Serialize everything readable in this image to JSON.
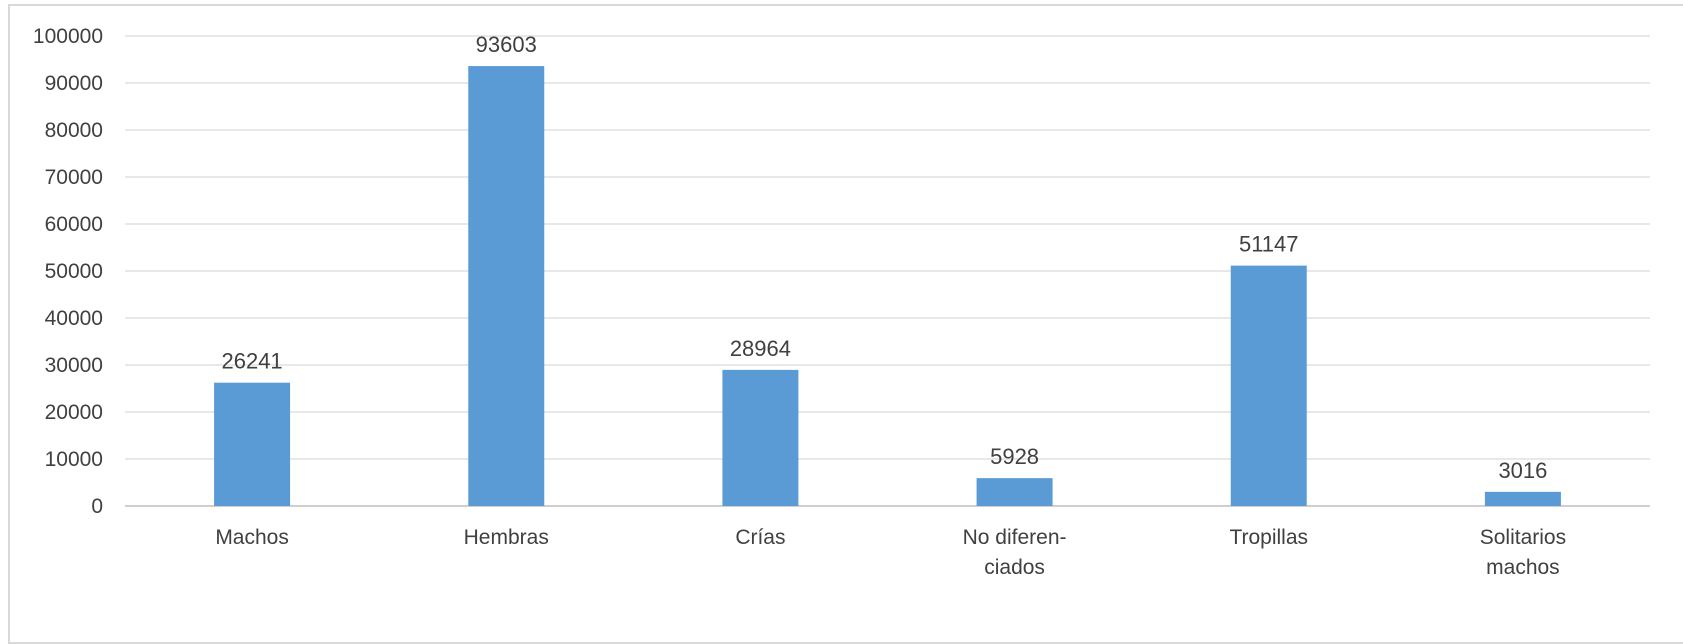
{
  "chart_data": {
    "type": "bar",
    "categories": [
      [
        "Machos"
      ],
      [
        "Hembras"
      ],
      [
        "Crías"
      ],
      [
        "No diferen-",
        "ciados"
      ],
      [
        "Tropillas"
      ],
      [
        "Solitarios",
        "machos"
      ]
    ],
    "values": [
      26241,
      93603,
      28964,
      5928,
      51147,
      3016
    ],
    "data_labels": [
      "26241",
      "93603",
      "28964",
      "5928",
      "51147",
      "3016"
    ],
    "y_ticks": [
      "0",
      "10000",
      "20000",
      "30000",
      "40000",
      "50000",
      "60000",
      "70000",
      "80000",
      "90000",
      "100000"
    ],
    "ylim": [
      0,
      100000
    ],
    "grid": true,
    "legend": "none",
    "bar_color": "#5b9bd5",
    "title": "",
    "xlabel": "",
    "ylabel": ""
  }
}
